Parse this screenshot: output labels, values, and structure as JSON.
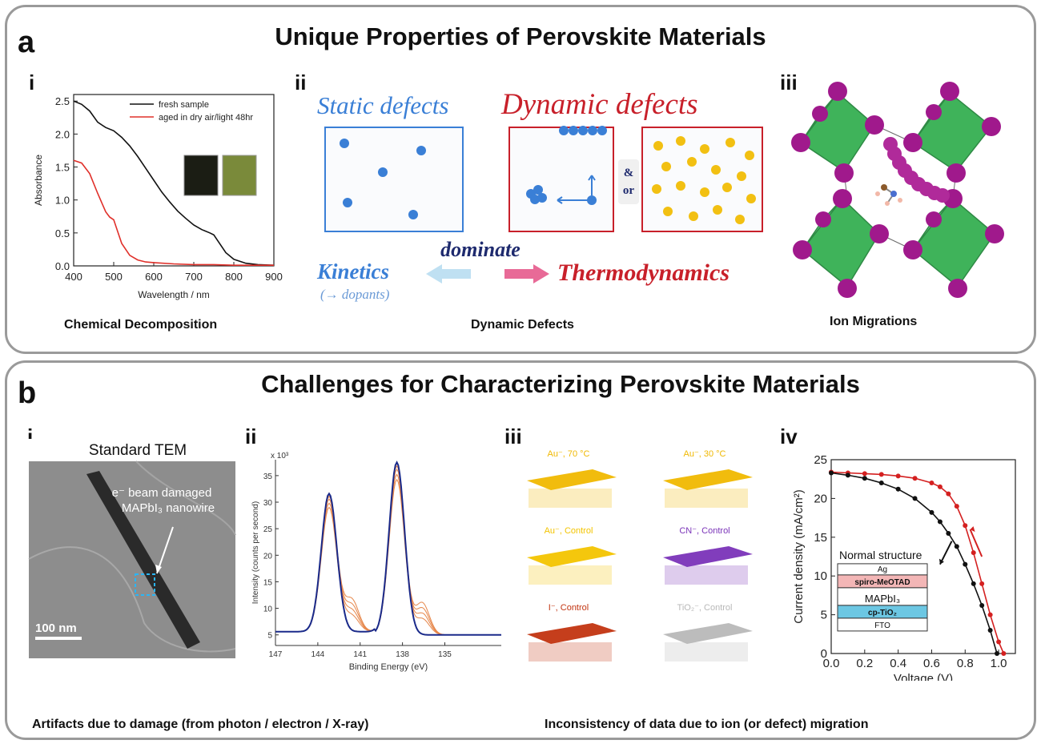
{
  "panel_a": {
    "letter": "a",
    "title": "Unique Properties of Perovskite Materials",
    "i": {
      "label": "i",
      "caption": "Chemical Decomposition",
      "chart_data": {
        "type": "line",
        "xlabel": "Wavelength / nm",
        "ylabel": "Absorbance",
        "xlim": [
          400,
          900
        ],
        "ylim": [
          0,
          2.6
        ],
        "x_ticks": [
          "400",
          "500",
          "600",
          "700",
          "800",
          "900"
        ],
        "y_ticks": [
          "0.0",
          "0.5",
          "1.0",
          "1.5",
          "2.0",
          "2.5"
        ],
        "legend_position": "top-right",
        "series": [
          {
            "name": "fresh sample",
            "color": "#111111",
            "x": [
              400,
              420,
              440,
              460,
              480,
              500,
              520,
              540,
              560,
              580,
              600,
              620,
              640,
              660,
              680,
              700,
              720,
              740,
              750,
              760,
              780,
              800,
              830,
              860,
              900
            ],
            "y": [
              2.5,
              2.45,
              2.35,
              2.18,
              2.1,
              2.05,
              1.95,
              1.82,
              1.66,
              1.48,
              1.3,
              1.12,
              0.97,
              0.83,
              0.72,
              0.62,
              0.55,
              0.5,
              0.47,
              0.38,
              0.2,
              0.1,
              0.04,
              0.02,
              0.01
            ]
          },
          {
            "name": "aged in dry air/light 48hr",
            "color": "#e0302a",
            "x": [
              400,
              420,
              440,
              460,
              480,
              490,
              500,
              510,
              520,
              540,
              560,
              580,
              600,
              650,
              700,
              750,
              800,
              900
            ],
            "y": [
              1.6,
              1.56,
              1.4,
              1.1,
              0.82,
              0.74,
              0.7,
              0.52,
              0.34,
              0.16,
              0.09,
              0.06,
              0.05,
              0.03,
              0.02,
              0.02,
              0.01,
              0.01
            ]
          }
        ]
      }
    },
    "ii": {
      "label": "ii",
      "caption": "Dynamic Defects",
      "static_label": "Static defects",
      "dynamic_label": "Dynamic defects",
      "and_or_1": "&",
      "and_or_2": "or",
      "dominate": "dominate",
      "kinetics": "Kinetics",
      "dopants": "(→ dopants)",
      "thermodynamics": "Thermodynamics",
      "colors": {
        "static": "#3a7fd6",
        "dynamic": "#c8202a",
        "ion": "#f2c012",
        "dominate": "#1e2a6e"
      }
    },
    "iii": {
      "label": "iii",
      "caption": "Ion Migrations",
      "colors": {
        "octahedra": "#3fb35a",
        "atom": "#a0198c"
      }
    }
  },
  "panel_b": {
    "letter": "b",
    "title": "Challenges for Characterizing Perovskite Materials",
    "caption_left": "Artifacts due to damage (from photon / electron / X-ray)",
    "caption_right": "Inconsistency of data due to ion (or defect) migration",
    "i": {
      "label": "i",
      "title": "Standard TEM",
      "annotation_line1": "e⁻ beam damaged",
      "annotation_line2": "MAPbI₃ nanowire",
      "scale_bar": "100 nm"
    },
    "ii": {
      "label": "ii",
      "chart_data": {
        "type": "line",
        "xlabel": "Binding Energy (eV)",
        "ylabel": "Intensity (counts per second)",
        "y_multiplier": "x 10³",
        "xlim": [
          147,
          131
        ],
        "ylim": [
          3,
          38
        ],
        "x_ticks": [
          "147",
          "144",
          "141",
          "138",
          "135"
        ],
        "y_ticks": [
          "5",
          "10",
          "15",
          "20",
          "25",
          "30",
          "35"
        ],
        "peaks_eV": [
          143.2,
          138.4
        ],
        "peak_heights": [
          31,
          37.5
        ],
        "satellite_peaks_eV": [
          141.6,
          136.6
        ],
        "colors": {
          "main": "#1a2a8a",
          "overlay": "#e6864a"
        }
      }
    },
    "iii": {
      "label": "iii",
      "tiles": [
        {
          "label": "Au⁻, 70 °C",
          "color": "#f0b800"
        },
        {
          "label": "Au⁻, 30 °C",
          "color": "#f0b800"
        },
        {
          "label": "Au⁻, Control",
          "color": "#f3c400"
        },
        {
          "label": "CN⁻, Control",
          "color": "#7a33b8"
        },
        {
          "label": "I⁻, Control",
          "color": "#c23410"
        },
        {
          "label": "TiO₂⁻, Control",
          "color": "#b8b8b8"
        }
      ]
    },
    "iv": {
      "label": "iv",
      "chart_data": {
        "type": "line",
        "xlabel": "Voltage (V)",
        "ylabel": "Current density (mA/cm²)",
        "xlim": [
          0,
          1.1
        ],
        "ylim": [
          0,
          25
        ],
        "x_ticks": [
          "0.0",
          "0.2",
          "0.4",
          "0.6",
          "0.8",
          "1.0"
        ],
        "y_ticks": [
          "0",
          "5",
          "10",
          "15",
          "20",
          "25"
        ],
        "series": [
          {
            "color": "#d42020",
            "x": [
              0,
              0.1,
              0.2,
              0.3,
              0.4,
              0.5,
              0.6,
              0.65,
              0.7,
              0.75,
              0.8,
              0.85,
              0.9,
              0.95,
              1.0,
              1.03
            ],
            "y": [
              23.4,
              23.3,
              23.2,
              23.1,
              22.9,
              22.6,
              22.0,
              21.5,
              20.6,
              19.0,
              16.5,
              13.0,
              9.0,
              5.0,
              1.5,
              0
            ]
          },
          {
            "color": "#111111",
            "x": [
              0,
              0.1,
              0.2,
              0.3,
              0.4,
              0.5,
              0.6,
              0.65,
              0.7,
              0.75,
              0.8,
              0.85,
              0.9,
              0.95,
              0.99
            ],
            "y": [
              23.3,
              23.0,
              22.6,
              22.0,
              21.2,
              20.0,
              18.2,
              17.0,
              15.5,
              13.8,
              11.5,
              9.0,
              6.2,
              3.0,
              0
            ]
          }
        ],
        "inset": {
          "title": "Normal structure",
          "layers": [
            {
              "name": "Ag",
              "color": "#ffffff"
            },
            {
              "name": "spiro-MeOTAD",
              "color": "#f3b6b6"
            },
            {
              "name": "MAPbI₃",
              "color": "#ffffff"
            },
            {
              "name": "cp-TiO₂",
              "color": "#6cc7e3"
            },
            {
              "name": "FTO",
              "color": "#ffffff"
            }
          ]
        }
      }
    }
  }
}
